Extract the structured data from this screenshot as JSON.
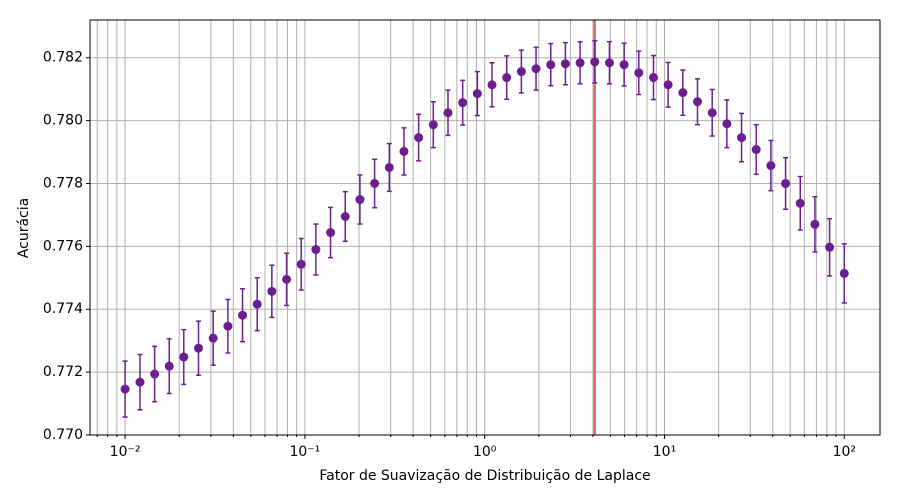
{
  "chart_data": {
    "type": "errorbar",
    "xlabel": "Fator de Suavização de Distribuição de Laplace",
    "ylabel": "Acurácia",
    "xscale": "log",
    "xlim": [
      0.00638,
      158
    ],
    "ylim": [
      0.77,
      0.7832
    ],
    "xticks": [
      {
        "value": 0.01,
        "label": "10⁻²"
      },
      {
        "value": 0.1,
        "label": "10⁻¹"
      },
      {
        "value": 1,
        "label": "10⁰"
      },
      {
        "value": 10,
        "label": "10¹"
      },
      {
        "value": 100,
        "label": "10²"
      }
    ],
    "xminorticks": [
      0.007,
      0.008,
      0.009,
      0.02,
      0.03,
      0.04,
      0.05,
      0.06,
      0.07,
      0.08,
      0.09,
      0.2,
      0.3,
      0.4,
      0.5,
      0.6,
      0.7,
      0.8,
      0.9,
      2,
      3,
      4,
      5,
      6,
      7,
      8,
      9,
      20,
      30,
      40,
      50,
      60,
      70,
      80,
      90
    ],
    "yticks": [
      {
        "value": 0.77,
        "label": "0.770"
      },
      0.772,
      0.774,
      0.776,
      0.778,
      {
        "value": 0.78,
        "label": "0.780"
      },
      0.782
    ],
    "grid": true,
    "color": "#6b1f8e",
    "vline": {
      "value": 4.09,
      "color": "#e8685a"
    },
    "x": [
      0.01,
      0.0121,
      0.0146,
      0.0176,
      0.0212,
      0.0256,
      0.0309,
      0.0373,
      0.045,
      0.0543,
      0.0655,
      0.0791,
      0.0954,
      0.1151,
      0.1389,
      0.1677,
      0.2024,
      0.2442,
      0.2947,
      0.3556,
      0.4292,
      0.5179,
      0.6251,
      0.7543,
      0.9103,
      1.0985,
      1.3257,
      1.5999,
      1.9307,
      2.33,
      2.8118,
      3.3932,
      4.0949,
      4.9417,
      5.9636,
      7.1969,
      8.6851,
      10.481,
      12.649,
      15.264,
      18.421,
      22.23,
      26.827,
      32.375,
      39.069,
      47.149,
      56.899,
      68.665,
      82.864,
      100
    ],
    "values": [
      0.77146,
      0.77168,
      0.77194,
      0.77219,
      0.77248,
      0.77276,
      0.77308,
      0.77346,
      0.77381,
      0.77416,
      0.77457,
      0.77495,
      0.77543,
      0.7759,
      0.77644,
      0.77695,
      0.77749,
      0.778,
      0.77851,
      0.77902,
      0.77946,
      0.77987,
      0.78025,
      0.78057,
      0.78086,
      0.78114,
      0.78137,
      0.78156,
      0.78165,
      0.78178,
      0.78181,
      0.78184,
      0.78187,
      0.78184,
      0.78178,
      0.78152,
      0.78137,
      0.78114,
      0.78089,
      0.7806,
      0.78025,
      0.7799,
      0.77946,
      0.77908,
      0.77857,
      0.778,
      0.77737,
      0.7767,
      0.77597,
      0.77514
    ],
    "errors": [
      0.00089,
      0.00088,
      0.00088,
      0.00087,
      0.00087,
      0.00086,
      0.00086,
      0.00085,
      0.00084,
      0.00084,
      0.00083,
      0.00083,
      0.00082,
      0.00081,
      0.0008,
      0.00079,
      0.00078,
      0.00077,
      0.00076,
      0.00075,
      0.00074,
      0.00073,
      0.00072,
      0.00071,
      0.0007,
      0.0007,
      0.00069,
      0.00068,
      0.00068,
      0.00067,
      0.00067,
      0.00067,
      0.00067,
      0.00067,
      0.00068,
      0.00069,
      0.0007,
      0.00071,
      0.00072,
      0.00073,
      0.00074,
      0.00076,
      0.00077,
      0.00079,
      0.0008,
      0.00082,
      0.00085,
      0.00088,
      0.00091,
      0.00094
    ]
  }
}
